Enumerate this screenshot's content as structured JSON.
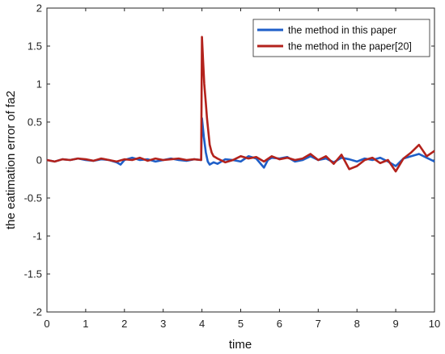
{
  "chart_data": {
    "type": "line",
    "xlabel": "time",
    "ylabel": "the eatimation error of fa2",
    "xlim": [
      0,
      10
    ],
    "ylim": [
      -2,
      2
    ],
    "xticks": [
      "0",
      "1",
      "2",
      "3",
      "4",
      "5",
      "6",
      "7",
      "8",
      "9",
      "10"
    ],
    "yticks": [
      "-2",
      "-1.5",
      "-1",
      "-0.5",
      "0",
      "0.5",
      "1",
      "1.5",
      "2"
    ],
    "grid": false,
    "legend_position": "top-right",
    "series": [
      {
        "name": "the method in this paper",
        "color": "#1f5fc8",
        "x": [
          0,
          0.2,
          0.4,
          0.6,
          0.8,
          1.0,
          1.2,
          1.4,
          1.6,
          1.8,
          1.9,
          2.0,
          2.2,
          2.4,
          2.6,
          2.8,
          3.0,
          3.2,
          3.4,
          3.6,
          3.8,
          3.98,
          4.0,
          4.05,
          4.1,
          4.15,
          4.2,
          4.3,
          4.4,
          4.6,
          4.8,
          5.0,
          5.2,
          5.4,
          5.6,
          5.7,
          5.8,
          6.0,
          6.2,
          6.4,
          6.6,
          6.8,
          7.0,
          7.2,
          7.4,
          7.6,
          7.8,
          8.0,
          8.2,
          8.4,
          8.6,
          8.8,
          9.0,
          9.2,
          9.4,
          9.6,
          9.8,
          10.0
        ],
        "y": [
          0.0,
          -0.02,
          0.01,
          0.0,
          0.02,
          0.0,
          -0.01,
          0.01,
          0.0,
          -0.03,
          -0.06,
          0.0,
          0.03,
          0.0,
          0.01,
          -0.02,
          0.0,
          0.02,
          0.0,
          -0.01,
          0.01,
          0.0,
          0.55,
          0.3,
          0.1,
          -0.02,
          -0.06,
          -0.03,
          -0.05,
          0.01,
          0.0,
          -0.02,
          0.05,
          0.02,
          -0.1,
          0.0,
          0.03,
          0.02,
          0.04,
          -0.02,
          0.0,
          0.05,
          0.0,
          0.02,
          -0.03,
          0.03,
          0.01,
          -0.02,
          0.02,
          0.0,
          0.03,
          -0.02,
          -0.08,
          0.02,
          0.05,
          0.08,
          0.03,
          -0.02
        ]
      },
      {
        "name": "the method in the paper[20]",
        "color": "#b3221c",
        "x": [
          0,
          0.2,
          0.4,
          0.6,
          0.8,
          1.0,
          1.2,
          1.4,
          1.6,
          1.8,
          2.0,
          2.2,
          2.4,
          2.6,
          2.8,
          3.0,
          3.2,
          3.4,
          3.6,
          3.8,
          3.98,
          4.0,
          4.03,
          4.06,
          4.1,
          4.13,
          4.17,
          4.2,
          4.25,
          4.3,
          4.4,
          4.6,
          4.8,
          5.0,
          5.2,
          5.4,
          5.6,
          5.8,
          6.0,
          6.2,
          6.4,
          6.6,
          6.8,
          7.0,
          7.2,
          7.4,
          7.6,
          7.8,
          8.0,
          8.2,
          8.4,
          8.6,
          8.8,
          9.0,
          9.2,
          9.4,
          9.6,
          9.8,
          10.0
        ],
        "y": [
          0.0,
          -0.02,
          0.01,
          0.0,
          0.02,
          0.01,
          -0.01,
          0.02,
          0.0,
          -0.02,
          0.01,
          0.0,
          0.03,
          -0.01,
          0.02,
          0.0,
          0.01,
          0.02,
          0.0,
          0.01,
          0.0,
          1.62,
          1.3,
          1.0,
          0.75,
          0.55,
          0.35,
          0.2,
          0.1,
          0.05,
          0.02,
          -0.03,
          0.0,
          0.05,
          0.02,
          0.04,
          -0.02,
          0.05,
          0.01,
          0.03,
          0.0,
          0.02,
          0.08,
          0.0,
          0.05,
          -0.05,
          0.07,
          -0.12,
          -0.08,
          0.0,
          0.03,
          -0.04,
          0.0,
          -0.15,
          0.02,
          0.1,
          0.2,
          0.05,
          0.12
        ]
      }
    ]
  }
}
